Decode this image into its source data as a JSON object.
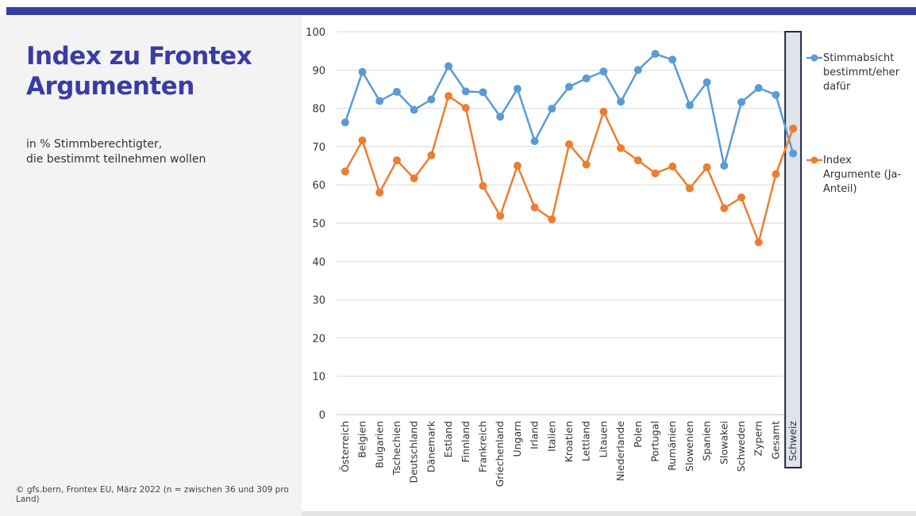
{
  "page": {
    "title": "Index zu Frontex\nArgumenten",
    "subtitle": "in % Stimmberechtigter,\ndie bestimmt teilnehmen wollen",
    "source": "©  gfs.bern, Frontex EU, März 2022 (n = zwischen 36 und 309 pro\n    Land)"
  },
  "colors": {
    "accent": "#3a3ca6",
    "series1": "#5b9bd5",
    "series2": "#ed7d31",
    "highlight": "#1f2a44"
  },
  "chart_data": {
    "type": "line",
    "categories": [
      "Österreich",
      "Belgien",
      "Bulgarien",
      "Tschechien",
      "Deutschland",
      "Dänemark",
      "Estland",
      "Finnland",
      "Frankreich",
      "Griechenland",
      "Ungarn",
      "Irland",
      "Italien",
      "Kroatien",
      "Lettland",
      "Litauen",
      "Niederlande",
      "Polen",
      "Portugal",
      "Rumänien",
      "Slowenien",
      "Spanien",
      "Slowakei",
      "Schweden",
      "Zypern",
      "Gesamt",
      "Schweiz"
    ],
    "series": [
      {
        "name": "Stimmabsicht bestimmt/eher dafür",
        "color": "#5b9bd5",
        "values": [
          76.3,
          89.5,
          81.9,
          84.3,
          79.6,
          82.3,
          91.0,
          84.4,
          84.2,
          77.8,
          85.1,
          71.4,
          79.9,
          85.6,
          87.8,
          89.6,
          81.7,
          90.0,
          94.2,
          92.7,
          80.8,
          86.8,
          65.0,
          81.6,
          85.3,
          83.5,
          68.2
        ]
      },
      {
        "name": "Index Argumente (Ja-Anteil)",
        "color": "#ed7d31",
        "values": [
          63.5,
          71.6,
          58.0,
          66.4,
          61.7,
          67.7,
          83.2,
          80.1,
          59.7,
          51.9,
          65.0,
          54.1,
          51.0,
          70.6,
          65.3,
          79.1,
          69.6,
          66.4,
          63.0,
          64.8,
          59.1,
          64.6,
          53.9,
          56.7,
          45.0,
          62.8,
          74.7
        ]
      }
    ],
    "ylim": [
      0,
      100
    ],
    "yticks": [
      0,
      10,
      20,
      30,
      40,
      50,
      60,
      70,
      80,
      90,
      100
    ],
    "grid": true,
    "legend": "right",
    "highlight_category": "Schweiz"
  }
}
